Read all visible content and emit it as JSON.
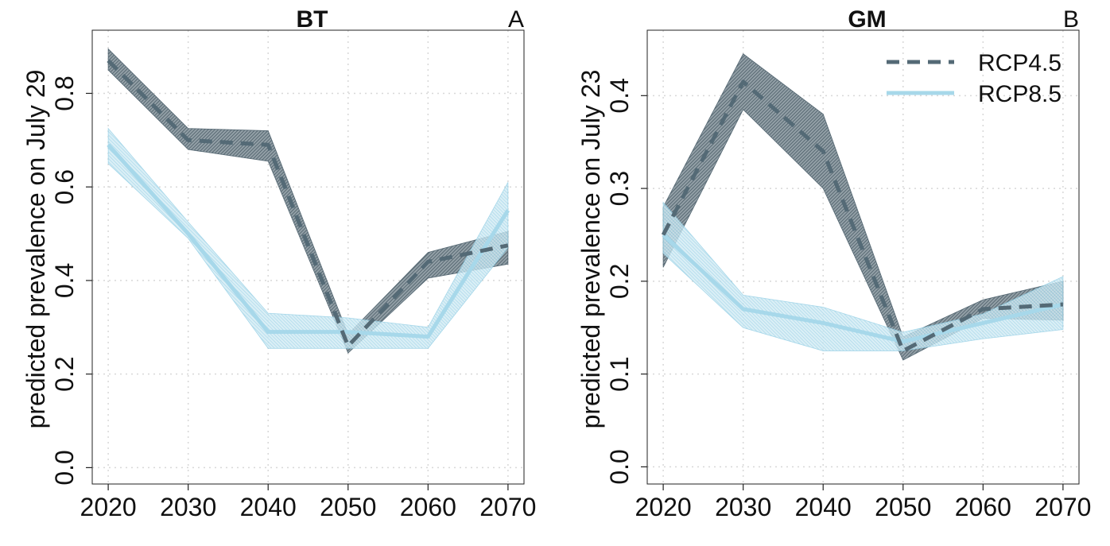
{
  "colors": {
    "rcp45": "#546a76",
    "rcp45_band": "#4a5e6a",
    "rcp85": "#a7d8ea",
    "rcp85_band": "#8fcde4"
  },
  "legend": {
    "entries": [
      {
        "label": "RCP4.5",
        "style": "dashed"
      },
      {
        "label": "RCP8.5",
        "style": "solid"
      }
    ]
  },
  "chart_data": [
    {
      "type": "line",
      "title": "BT",
      "panel_label": "A",
      "xlabel": "",
      "ylabel": "predicted prevalence on July 29",
      "x": [
        2020,
        2030,
        2040,
        2050,
        2060,
        2070
      ],
      "xlim": [
        2018,
        2072
      ],
      "ylim": [
        -0.035,
        0.935
      ],
      "xticks": [
        "2020",
        "2030",
        "2040",
        "2050",
        "2060",
        "2070"
      ],
      "yticks": [
        "0.0",
        "0.2",
        "0.4",
        "0.6",
        "0.8"
      ],
      "ytick_values": [
        0.0,
        0.2,
        0.4,
        0.6,
        0.8
      ],
      "grid": true,
      "series": [
        {
          "name": "RCP4.5",
          "values": [
            0.87,
            0.7,
            0.69,
            0.26,
            0.44,
            0.475
          ],
          "lower": [
            0.85,
            0.68,
            0.655,
            0.245,
            0.405,
            0.435
          ],
          "upper": [
            0.895,
            0.725,
            0.72,
            0.285,
            0.46,
            0.505
          ]
        },
        {
          "name": "RCP8.5",
          "values": [
            0.69,
            0.5,
            0.29,
            0.29,
            0.28,
            0.55
          ],
          "lower": [
            0.65,
            0.49,
            0.255,
            0.255,
            0.255,
            0.47
          ],
          "upper": [
            0.725,
            0.525,
            0.33,
            0.32,
            0.3,
            0.61
          ]
        }
      ]
    },
    {
      "type": "line",
      "title": "GM",
      "panel_label": "B",
      "xlabel": "",
      "ylabel": "predicted prevalence on July 23",
      "x": [
        2020,
        2030,
        2040,
        2050,
        2060,
        2070
      ],
      "xlim": [
        2018,
        2072
      ],
      "ylim": [
        -0.0185,
        0.4705
      ],
      "xticks": [
        "2020",
        "2030",
        "2040",
        "2050",
        "2060",
        "2070"
      ],
      "yticks": [
        "0.0",
        "0.1",
        "0.2",
        "0.3",
        "0.4"
      ],
      "ytick_values": [
        0.0,
        0.1,
        0.2,
        0.3,
        0.4
      ],
      "grid": true,
      "legend_position": "top-right",
      "series": [
        {
          "name": "RCP4.5",
          "values": [
            0.25,
            0.415,
            0.34,
            0.125,
            0.17,
            0.175
          ],
          "lower": [
            0.215,
            0.385,
            0.3,
            0.115,
            0.16,
            0.158
          ],
          "upper": [
            0.28,
            0.445,
            0.38,
            0.14,
            0.18,
            0.2
          ]
        },
        {
          "name": "RCP8.5",
          "values": [
            0.25,
            0.17,
            0.155,
            0.135,
            0.155,
            0.175
          ],
          "lower": [
            0.23,
            0.15,
            0.125,
            0.125,
            0.138,
            0.148
          ],
          "upper": [
            0.285,
            0.185,
            0.172,
            0.145,
            0.165,
            0.205
          ]
        }
      ]
    }
  ]
}
